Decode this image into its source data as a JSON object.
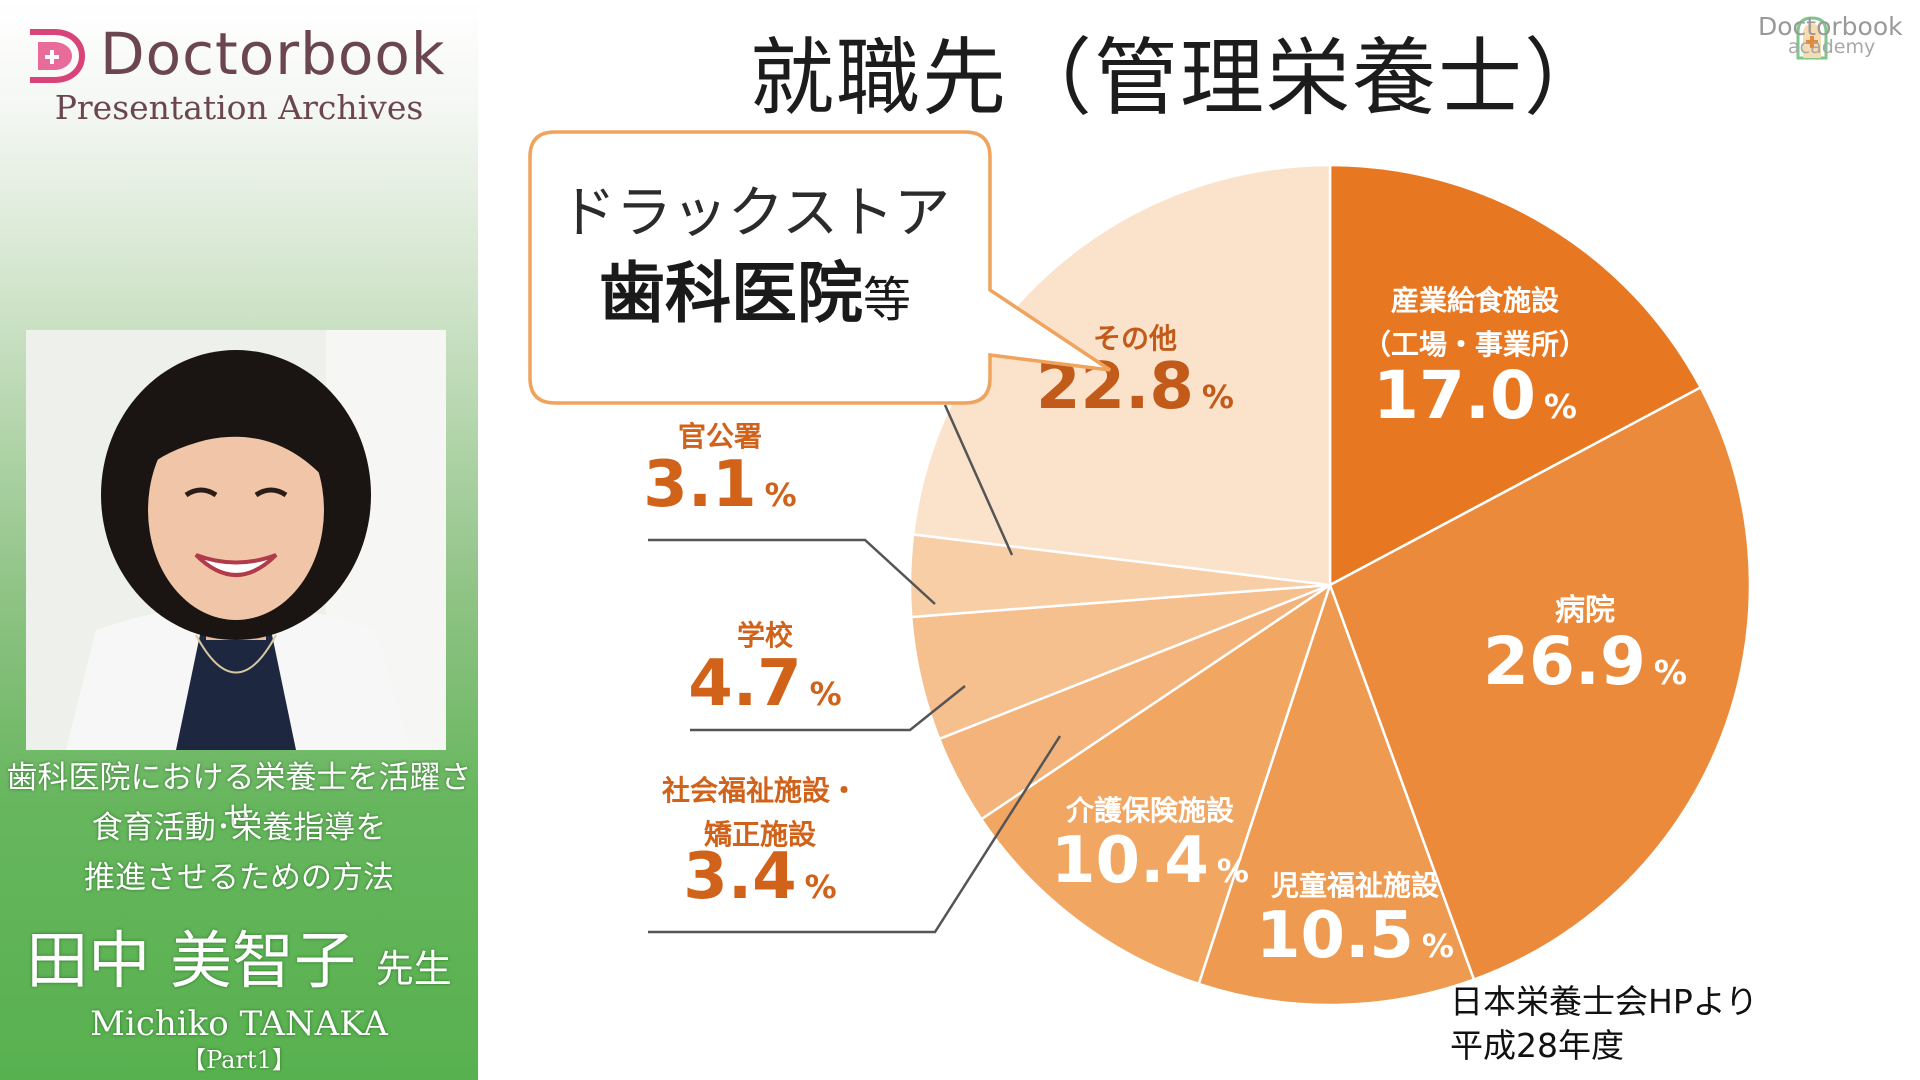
{
  "brand": {
    "name": "Doctorbook",
    "subtitle": "Presentation Archives"
  },
  "academy": {
    "name": "Doctorbook",
    "sub": "academy"
  },
  "talk": {
    "title_lines": [
      "歯科医院における栄養士を活躍させ",
      "食育活動･栄養指導を",
      "推進させるための方法"
    ],
    "speaker_name": "田中 美智子",
    "speaker_honorific": "先生",
    "speaker_romaji": "Michiko TANAKA",
    "part": "【Part1】"
  },
  "slide": {
    "title": "就職先（管理栄養士）",
    "callout": {
      "line1": "ドラックストア",
      "strong": "歯科医院",
      "suffix": "等"
    },
    "source_line1": "日本栄養士会HPより",
    "source_line2": "平成28年度"
  },
  "colors": {
    "accent": "#e87722",
    "panel_green": "#58b14f",
    "brand_text": "#6b4650",
    "callout_border": "#f0a35c"
  },
  "chart_data": {
    "type": "pie",
    "unit": "%",
    "slices": [
      {
        "name_lines": [
          "産業給食施設",
          "（工場・事業所）"
        ],
        "value": 17.0,
        "label": "17.0",
        "color": "#e87722"
      },
      {
        "name_lines": [
          "病院"
        ],
        "value": 26.9,
        "label": "26.9",
        "color": "#ec8a3b"
      },
      {
        "name_lines": [
          "児童福祉施設"
        ],
        "value": 10.5,
        "label": "10.5",
        "color": "#ee9a51"
      },
      {
        "name_lines": [
          "介護保険施設"
        ],
        "value": 10.4,
        "label": "10.4",
        "color": "#f1a662"
      },
      {
        "name_lines": [
          "社会福祉施設・",
          "矯正施設"
        ],
        "value": 3.4,
        "label": "3.4",
        "color": "#f3b37b"
      },
      {
        "name_lines": [
          "学校"
        ],
        "value": 4.7,
        "label": "4.7",
        "color": "#f5bf8e"
      },
      {
        "name_lines": [
          "官公署"
        ],
        "value": 3.1,
        "label": "3.1",
        "color": "#f8cea6"
      },
      {
        "name_lines": [
          "その他"
        ],
        "value": 22.8,
        "label": "22.8",
        "color": "#fbe2cb"
      }
    ]
  }
}
